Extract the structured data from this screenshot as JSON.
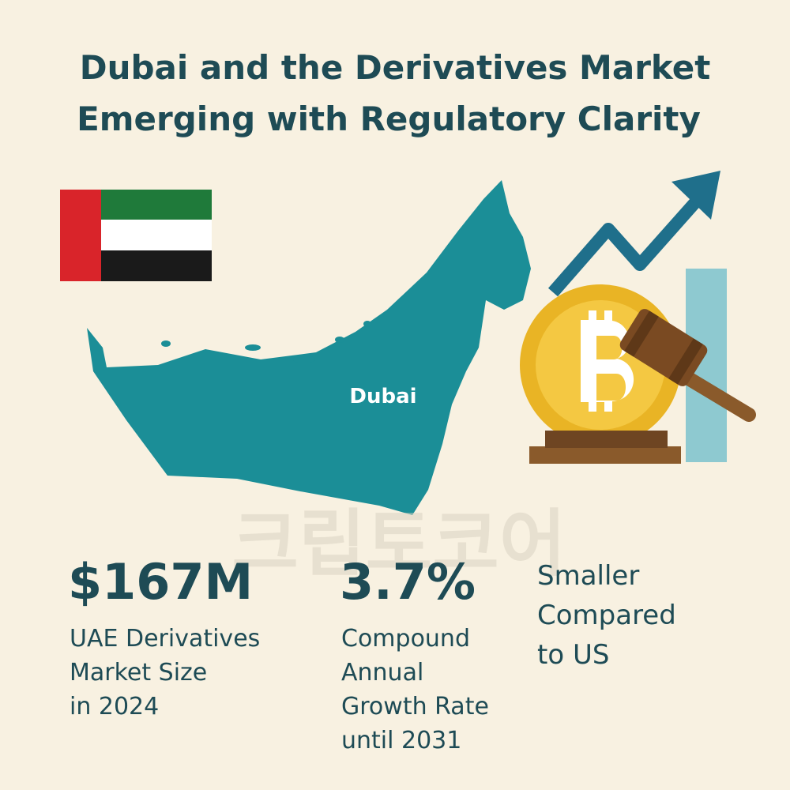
{
  "header": {
    "title": [
      "Dubai and the Derivatives Market",
      "Emerging with Regulatory Clarity"
    ]
  },
  "map": {
    "label": "Dubai"
  },
  "watermark": "크립토코어",
  "stats": [
    {
      "value": "$167M",
      "label": [
        "UAE Derivatives",
        "Market Size",
        "in 2024"
      ]
    },
    {
      "value": "3.7%",
      "label": [
        "Compound",
        "Annual",
        "Growth Rate",
        "until 2031"
      ]
    },
    {
      "label": [
        "Smaller",
        "Compared",
        "to US"
      ]
    }
  ]
}
